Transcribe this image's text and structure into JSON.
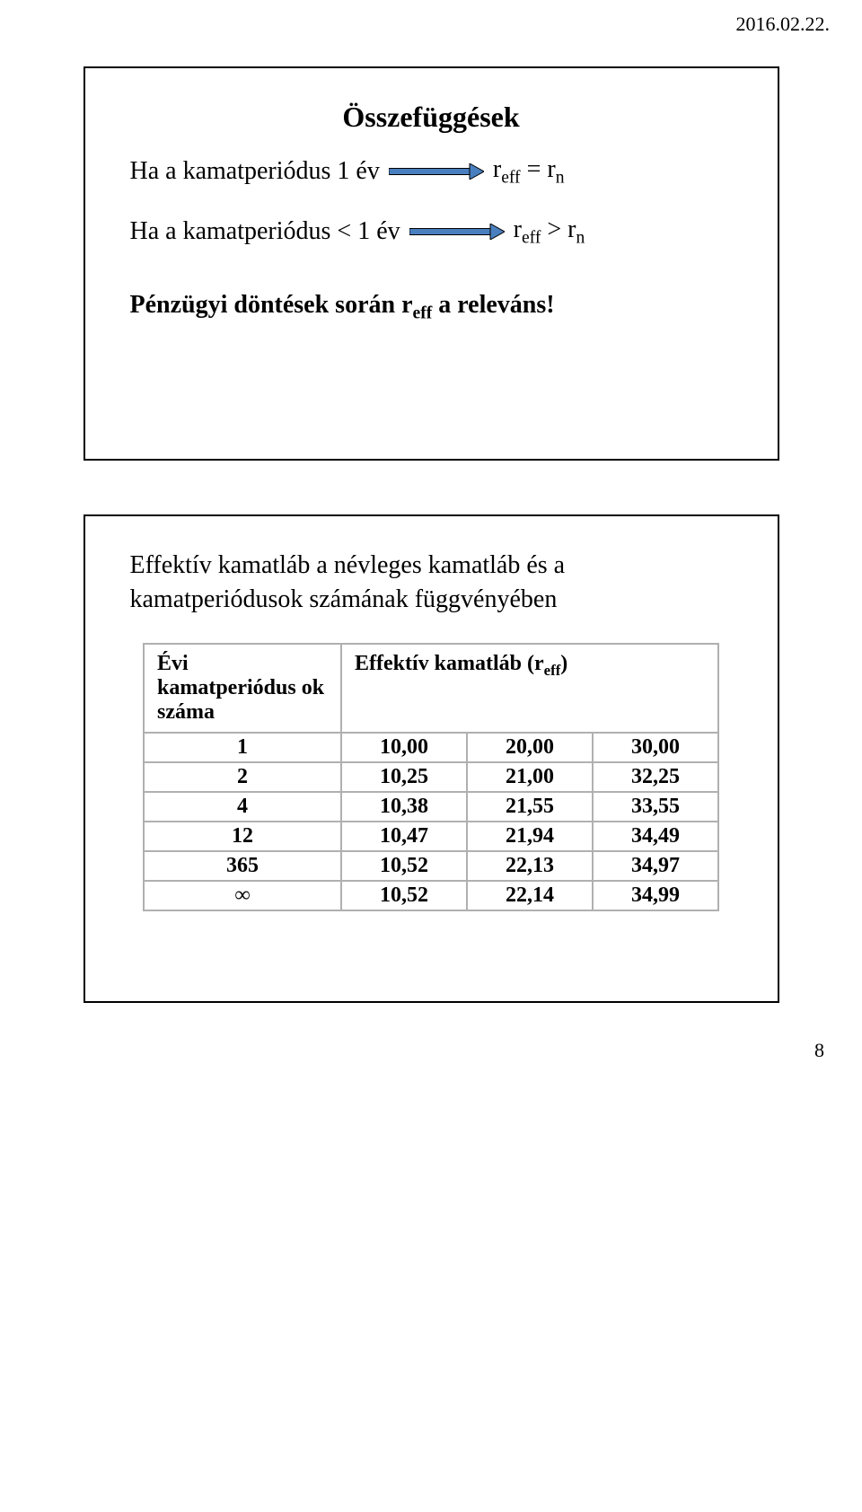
{
  "dateHeader": "2016.02.22.",
  "slide1": {
    "title": "Összefüggések",
    "line1_left": "Ha a kamatperiódus    1 év",
    "line1_right_pre": "r",
    "line1_right_sub1": "eff",
    "line1_right_mid": " = r",
    "line1_right_sub2": "n",
    "line2_left": "Ha a kamatperiódus < 1 év",
    "line2_right_pre": "r",
    "line2_right_sub1": "eff",
    "line2_right_mid": " > r",
    "line2_right_sub2": "n",
    "bottom_pre": "Pénzügyi döntések során r",
    "bottom_sub": "eff",
    "bottom_post": " a releváns!",
    "arrow_color": "#4a7fbf"
  },
  "slide2": {
    "text": "Effektív kamatláb a névleges kamatláb és a kamatperiódusok számának függvényében",
    "table": {
      "col0_header": "Évi kamatperiódus ok száma",
      "col1_header_pre": "Effektív kamatláb (r",
      "col1_header_sub": "eff",
      "col1_header_post": ")",
      "border_color": "#b0b0b0",
      "rows": [
        {
          "p": "1",
          "a": "10,00",
          "b": "20,00",
          "c": "30,00"
        },
        {
          "p": "2",
          "a": "10,25",
          "b": "21,00",
          "c": "32,25"
        },
        {
          "p": "4",
          "a": "10,38",
          "b": "21,55",
          "c": "33,55"
        },
        {
          "p": "12",
          "a": "10,47",
          "b": "21,94",
          "c": "34,49"
        },
        {
          "p": "365",
          "a": "10,52",
          "b": "22,13",
          "c": "34,97"
        },
        {
          "p": "∞",
          "a": "10,52",
          "b": "22,14",
          "c": "34,99"
        }
      ]
    }
  },
  "pageNumber": "8"
}
